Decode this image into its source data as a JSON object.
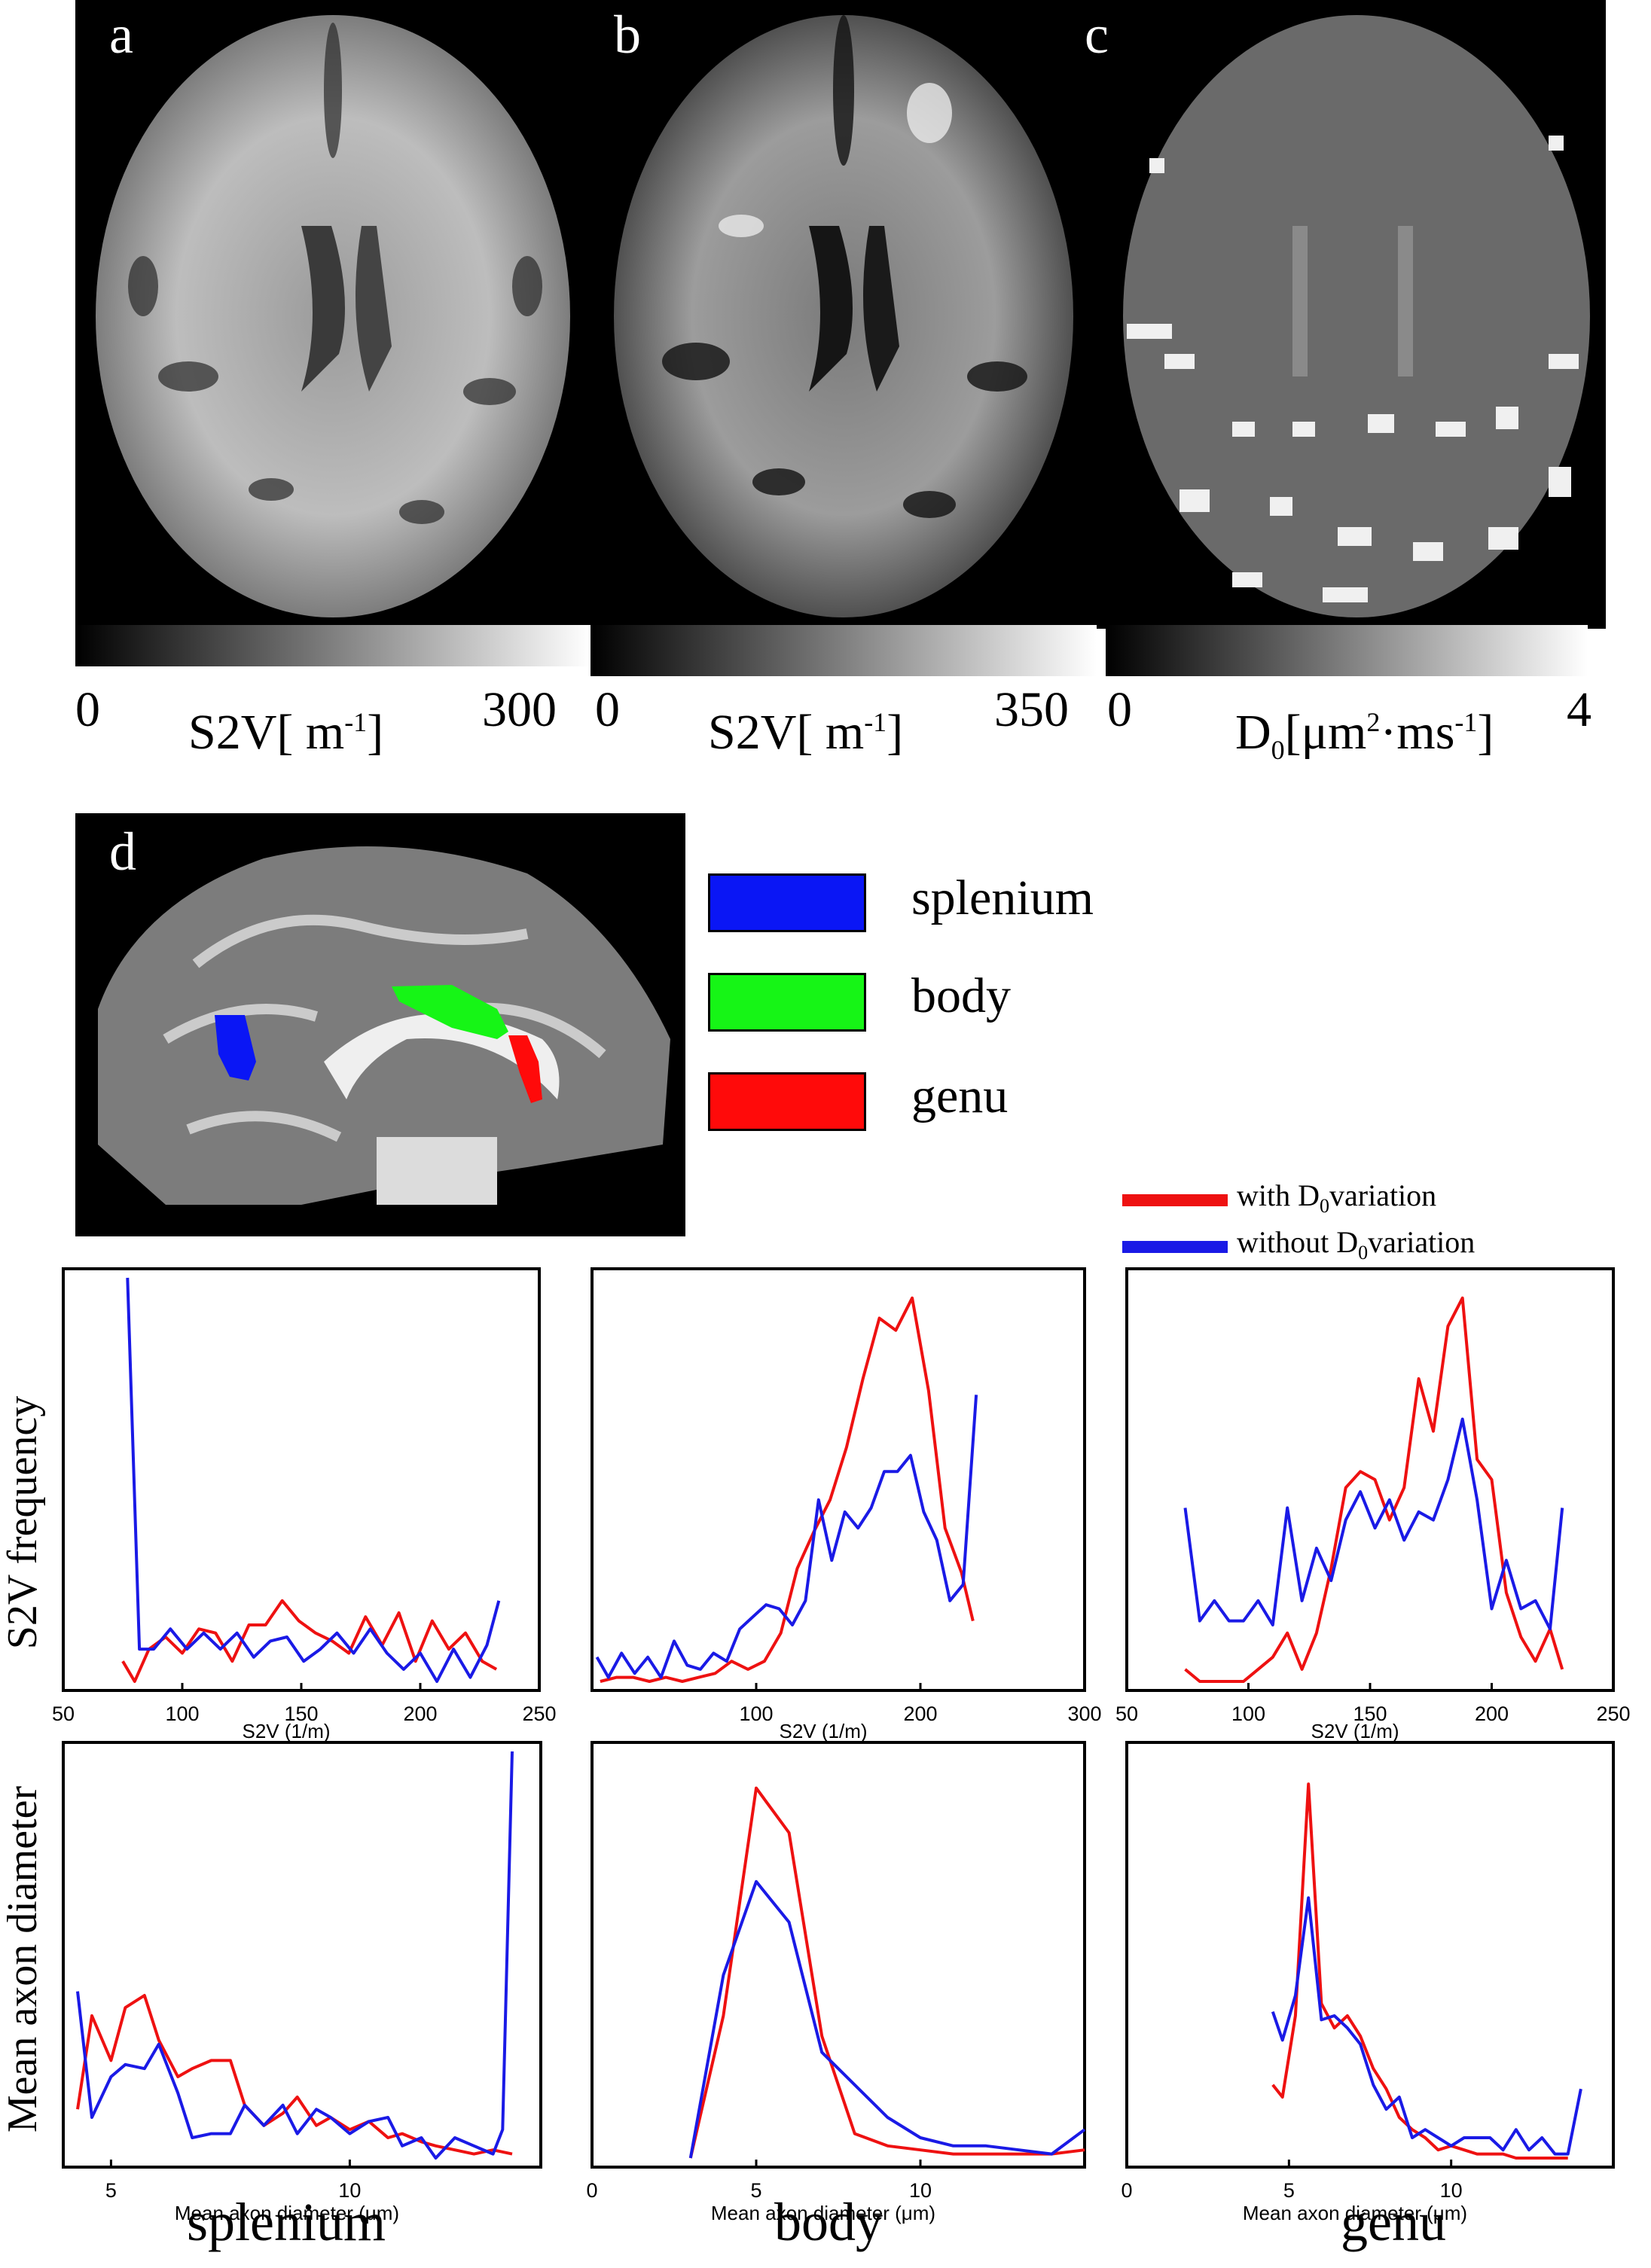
{
  "panels": {
    "a": {
      "letter": "a",
      "cbar_min": "0",
      "cbar_max": "300",
      "cbar_label": "S2V[ m-1]",
      "cbar_label_main": "S2V[ m",
      "cbar_label_sup": "-1",
      "cbar_label_end": "]"
    },
    "b": {
      "letter": "b",
      "cbar_min": "0",
      "cbar_max": "350",
      "cbar_label_main": "S2V[ m",
      "cbar_label_sup": "-1",
      "cbar_label_end": "]"
    },
    "c": {
      "letter": "c",
      "cbar_min": "0",
      "cbar_max": "4",
      "cbar_label_d": "D",
      "cbar_label_sub": "0",
      "cbar_label_mid": "[μm",
      "cbar_label_sup1": "2",
      "cbar_label_mid2": "·ms",
      "cbar_label_sup2": "-1",
      "cbar_label_end": "]"
    },
    "d": {
      "letter": "d"
    }
  },
  "region_legend": [
    {
      "label": "splenium",
      "color": "#0a16f5"
    },
    {
      "label": "body",
      "color": "#16f516"
    },
    {
      "label": "genu",
      "color": "#ff0a0a"
    }
  ],
  "line_legend": [
    {
      "pre": "with D",
      "sub": "0",
      "post": "variation",
      "color": "#ee1111"
    },
    {
      "pre": "without D",
      "sub": "0",
      "post": "variation",
      "color": "#1a1ae6"
    }
  ],
  "row_labels": {
    "top": "S2V frequency",
    "bottom": "Mean axon diameter"
  },
  "column_titles": [
    "splenium",
    "body",
    "genu"
  ],
  "chart_data": [
    {
      "type": "line",
      "region": "splenium",
      "xlabel": "S2V (1/m)",
      "ylabel": "",
      "xlim": [
        50,
        250
      ],
      "ylim": [
        0,
        1
      ],
      "xticks": [
        "50",
        "100",
        "150",
        "200",
        "250"
      ],
      "xtick_values": [
        50,
        100,
        150,
        200,
        250
      ],
      "series": [
        {
          "name": "with D0variation",
          "color": "#ee1111",
          "x": [
            75,
            80,
            86,
            93,
            100,
            107,
            114,
            121,
            128,
            135,
            142,
            149,
            156,
            163,
            170,
            177,
            184,
            191,
            198,
            205,
            212,
            219,
            226,
            232
          ],
          "y": [
            0.05,
            0.0,
            0.08,
            0.11,
            0.07,
            0.13,
            0.12,
            0.05,
            0.14,
            0.14,
            0.2,
            0.15,
            0.12,
            0.1,
            0.07,
            0.16,
            0.09,
            0.17,
            0.05,
            0.15,
            0.08,
            0.12,
            0.05,
            0.03
          ]
        },
        {
          "name": "without D0variation",
          "color": "#1a1ae6",
          "x": [
            77,
            82,
            88,
            95,
            102,
            109,
            116,
            123,
            130,
            137,
            144,
            151,
            158,
            165,
            172,
            179,
            186,
            193,
            200,
            207,
            214,
            221,
            228,
            233
          ],
          "y": [
            1.0,
            0.08,
            0.08,
            0.13,
            0.08,
            0.12,
            0.08,
            0.12,
            0.06,
            0.1,
            0.11,
            0.05,
            0.08,
            0.12,
            0.07,
            0.13,
            0.07,
            0.03,
            0.07,
            0.0,
            0.08,
            0.01,
            0.09,
            0.2
          ]
        }
      ]
    },
    {
      "type": "line",
      "region": "body",
      "xlabel": "S2V (1/m)",
      "ylabel": "",
      "xlim": [
        0,
        300
      ],
      "ylim": [
        0,
        1
      ],
      "xticks": [
        "100",
        "200",
        "300"
      ],
      "xtick_values": [
        100,
        200,
        300
      ],
      "series": [
        {
          "name": "with D0variation",
          "color": "#ee1111",
          "x": [
            5,
            15,
            25,
            35,
            45,
            55,
            65,
            75,
            85,
            95,
            105,
            115,
            125,
            135,
            145,
            155,
            165,
            175,
            185,
            195,
            205,
            215,
            225,
            232
          ],
          "y": [
            0.0,
            0.01,
            0.01,
            0.0,
            0.01,
            0.0,
            0.01,
            0.02,
            0.05,
            0.03,
            0.05,
            0.12,
            0.28,
            0.37,
            0.45,
            0.58,
            0.75,
            0.9,
            0.87,
            0.95,
            0.72,
            0.38,
            0.27,
            0.15
          ]
        },
        {
          "name": "without D0variation",
          "color": "#1a1ae6",
          "x": [
            3,
            10,
            18,
            26,
            34,
            42,
            50,
            58,
            66,
            74,
            82,
            90,
            98,
            106,
            114,
            122,
            130,
            138,
            146,
            154,
            162,
            170,
            178,
            186,
            194,
            202,
            210,
            218,
            226,
            234
          ],
          "y": [
            0.06,
            0.01,
            0.07,
            0.02,
            0.06,
            0.01,
            0.1,
            0.04,
            0.03,
            0.07,
            0.05,
            0.13,
            0.16,
            0.19,
            0.18,
            0.14,
            0.2,
            0.45,
            0.3,
            0.42,
            0.38,
            0.43,
            0.52,
            0.52,
            0.56,
            0.42,
            0.35,
            0.2,
            0.24,
            0.71
          ]
        }
      ]
    },
    {
      "type": "line",
      "region": "genu",
      "xlabel": "S2V (1/m)",
      "ylabel": "",
      "xlim": [
        50,
        250
      ],
      "ylim": [
        0,
        1
      ],
      "xticks": [
        "50",
        "100",
        "150",
        "200",
        "250"
      ],
      "xtick_values": [
        50,
        100,
        150,
        200,
        250
      ],
      "series": [
        {
          "name": "with D0variation",
          "color": "#ee1111",
          "x": [
            74,
            80,
            86,
            92,
            98,
            104,
            110,
            116,
            122,
            128,
            134,
            140,
            146,
            152,
            158,
            164,
            170,
            176,
            182,
            188,
            194,
            200,
            206,
            212,
            218,
            224,
            229
          ],
          "y": [
            0.03,
            0.0,
            0.0,
            0.0,
            0.0,
            0.03,
            0.06,
            0.12,
            0.03,
            0.12,
            0.28,
            0.48,
            0.52,
            0.5,
            0.4,
            0.48,
            0.75,
            0.62,
            0.88,
            0.95,
            0.55,
            0.5,
            0.22,
            0.11,
            0.05,
            0.13,
            0.03
          ]
        },
        {
          "name": "without D0variation",
          "color": "#1a1ae6",
          "x": [
            74,
            80,
            86,
            92,
            98,
            104,
            110,
            116,
            122,
            128,
            134,
            140,
            146,
            152,
            158,
            164,
            170,
            176,
            182,
            188,
            194,
            200,
            206,
            212,
            218,
            224,
            229
          ],
          "y": [
            0.43,
            0.15,
            0.2,
            0.15,
            0.15,
            0.2,
            0.14,
            0.43,
            0.2,
            0.33,
            0.25,
            0.4,
            0.47,
            0.38,
            0.45,
            0.35,
            0.42,
            0.4,
            0.5,
            0.65,
            0.45,
            0.18,
            0.3,
            0.18,
            0.2,
            0.13,
            0.43
          ]
        }
      ]
    },
    {
      "type": "line",
      "region": "splenium",
      "xlabel": "Mean axon diameter (μm)",
      "ylabel": "",
      "xlim": [
        4,
        14
      ],
      "ylim": [
        0,
        1
      ],
      "xticks": [
        "5",
        "10"
      ],
      "xtick_values": [
        5,
        10
      ],
      "series": [
        {
          "name": "with D0variation",
          "color": "#ee1111",
          "x": [
            4.3,
            4.6,
            5.0,
            5.3,
            5.7,
            6.0,
            6.4,
            6.7,
            7.1,
            7.5,
            7.8,
            8.2,
            8.6,
            8.9,
            9.3,
            9.6,
            10.0,
            10.4,
            10.8,
            11.1,
            11.5,
            11.8,
            12.2,
            12.6,
            13.0,
            13.4
          ],
          "y": [
            0.12,
            0.35,
            0.24,
            0.37,
            0.4,
            0.29,
            0.2,
            0.22,
            0.24,
            0.24,
            0.13,
            0.08,
            0.11,
            0.15,
            0.08,
            0.1,
            0.07,
            0.09,
            0.05,
            0.06,
            0.04,
            0.03,
            0.02,
            0.01,
            0.02,
            0.01
          ]
        },
        {
          "name": "without D0variation",
          "color": "#1a1ae6",
          "x": [
            4.3,
            4.6,
            5.0,
            5.3,
            5.7,
            6.0,
            6.4,
            6.7,
            7.1,
            7.5,
            7.8,
            8.2,
            8.6,
            8.9,
            9.3,
            9.6,
            10.0,
            10.4,
            10.8,
            11.1,
            11.5,
            11.8,
            12.2,
            12.6,
            13.0,
            13.2,
            13.4
          ],
          "y": [
            0.41,
            0.1,
            0.2,
            0.23,
            0.22,
            0.28,
            0.16,
            0.05,
            0.06,
            0.06,
            0.13,
            0.08,
            0.13,
            0.06,
            0.12,
            0.1,
            0.06,
            0.09,
            0.1,
            0.03,
            0.05,
            0.0,
            0.05,
            0.03,
            0.01,
            0.07,
            1.0
          ]
        }
      ]
    },
    {
      "type": "line",
      "region": "body",
      "xlabel": "Mean axon diameter (μm)",
      "ylabel": "",
      "xlim": [
        0,
        15
      ],
      "ylim": [
        0,
        1
      ],
      "xticks": [
        "0",
        "5",
        "10"
      ],
      "xtick_values": [
        0,
        5,
        10
      ],
      "series": [
        {
          "name": "with D0variation",
          "color": "#ee1111",
          "x": [
            3.0,
            4.0,
            5.0,
            6.0,
            7.0,
            8.0,
            9.0,
            10.0,
            11.0,
            12.0,
            13.0,
            14.0,
            15.0
          ],
          "y": [
            0.0,
            0.35,
            0.91,
            0.8,
            0.3,
            0.06,
            0.03,
            0.02,
            0.01,
            0.01,
            0.01,
            0.01,
            0.02
          ]
        },
        {
          "name": "without D0variation",
          "color": "#1a1ae6",
          "x": [
            3.0,
            4.0,
            5.0,
            6.0,
            7.0,
            8.0,
            9.0,
            10.0,
            11.0,
            12.0,
            13.0,
            14.0,
            15.0
          ],
          "y": [
            0.0,
            0.45,
            0.68,
            0.58,
            0.26,
            0.18,
            0.1,
            0.05,
            0.03,
            0.03,
            0.02,
            0.01,
            0.07
          ]
        }
      ]
    },
    {
      "type": "line",
      "region": "genu",
      "xlabel": "Mean axon diameter (μm)",
      "ylabel": "",
      "xlim": [
        0,
        15
      ],
      "ylim": [
        0,
        1
      ],
      "xticks": [
        "0",
        "5",
        "10"
      ],
      "xtick_values": [
        0,
        5,
        10
      ],
      "series": [
        {
          "name": "with D0variation",
          "color": "#ee1111",
          "x": [
            4.5,
            4.8,
            5.2,
            5.6,
            6.0,
            6.4,
            6.8,
            7.2,
            7.6,
            8.0,
            8.4,
            8.8,
            9.2,
            9.6,
            10.0,
            10.4,
            10.8,
            11.2,
            11.6,
            12.0,
            12.4,
            12.8,
            13.2,
            13.6
          ],
          "y": [
            0.18,
            0.15,
            0.35,
            0.92,
            0.38,
            0.32,
            0.35,
            0.3,
            0.22,
            0.17,
            0.1,
            0.07,
            0.05,
            0.02,
            0.03,
            0.02,
            0.01,
            0.01,
            0.01,
            0.0,
            0.0,
            0.0,
            0.0,
            0.0
          ]
        },
        {
          "name": "without D0variation",
          "color": "#1a1ae6",
          "x": [
            4.5,
            4.8,
            5.2,
            5.6,
            6.0,
            6.4,
            6.8,
            7.2,
            7.6,
            8.0,
            8.4,
            8.8,
            9.2,
            9.6,
            10.0,
            10.4,
            10.8,
            11.2,
            11.6,
            12.0,
            12.4,
            12.8,
            13.2,
            13.6,
            14.0
          ],
          "y": [
            0.36,
            0.29,
            0.4,
            0.64,
            0.34,
            0.35,
            0.32,
            0.28,
            0.18,
            0.12,
            0.15,
            0.05,
            0.07,
            0.05,
            0.03,
            0.05,
            0.05,
            0.05,
            0.02,
            0.07,
            0.02,
            0.05,
            0.01,
            0.01,
            0.17
          ]
        }
      ]
    }
  ]
}
